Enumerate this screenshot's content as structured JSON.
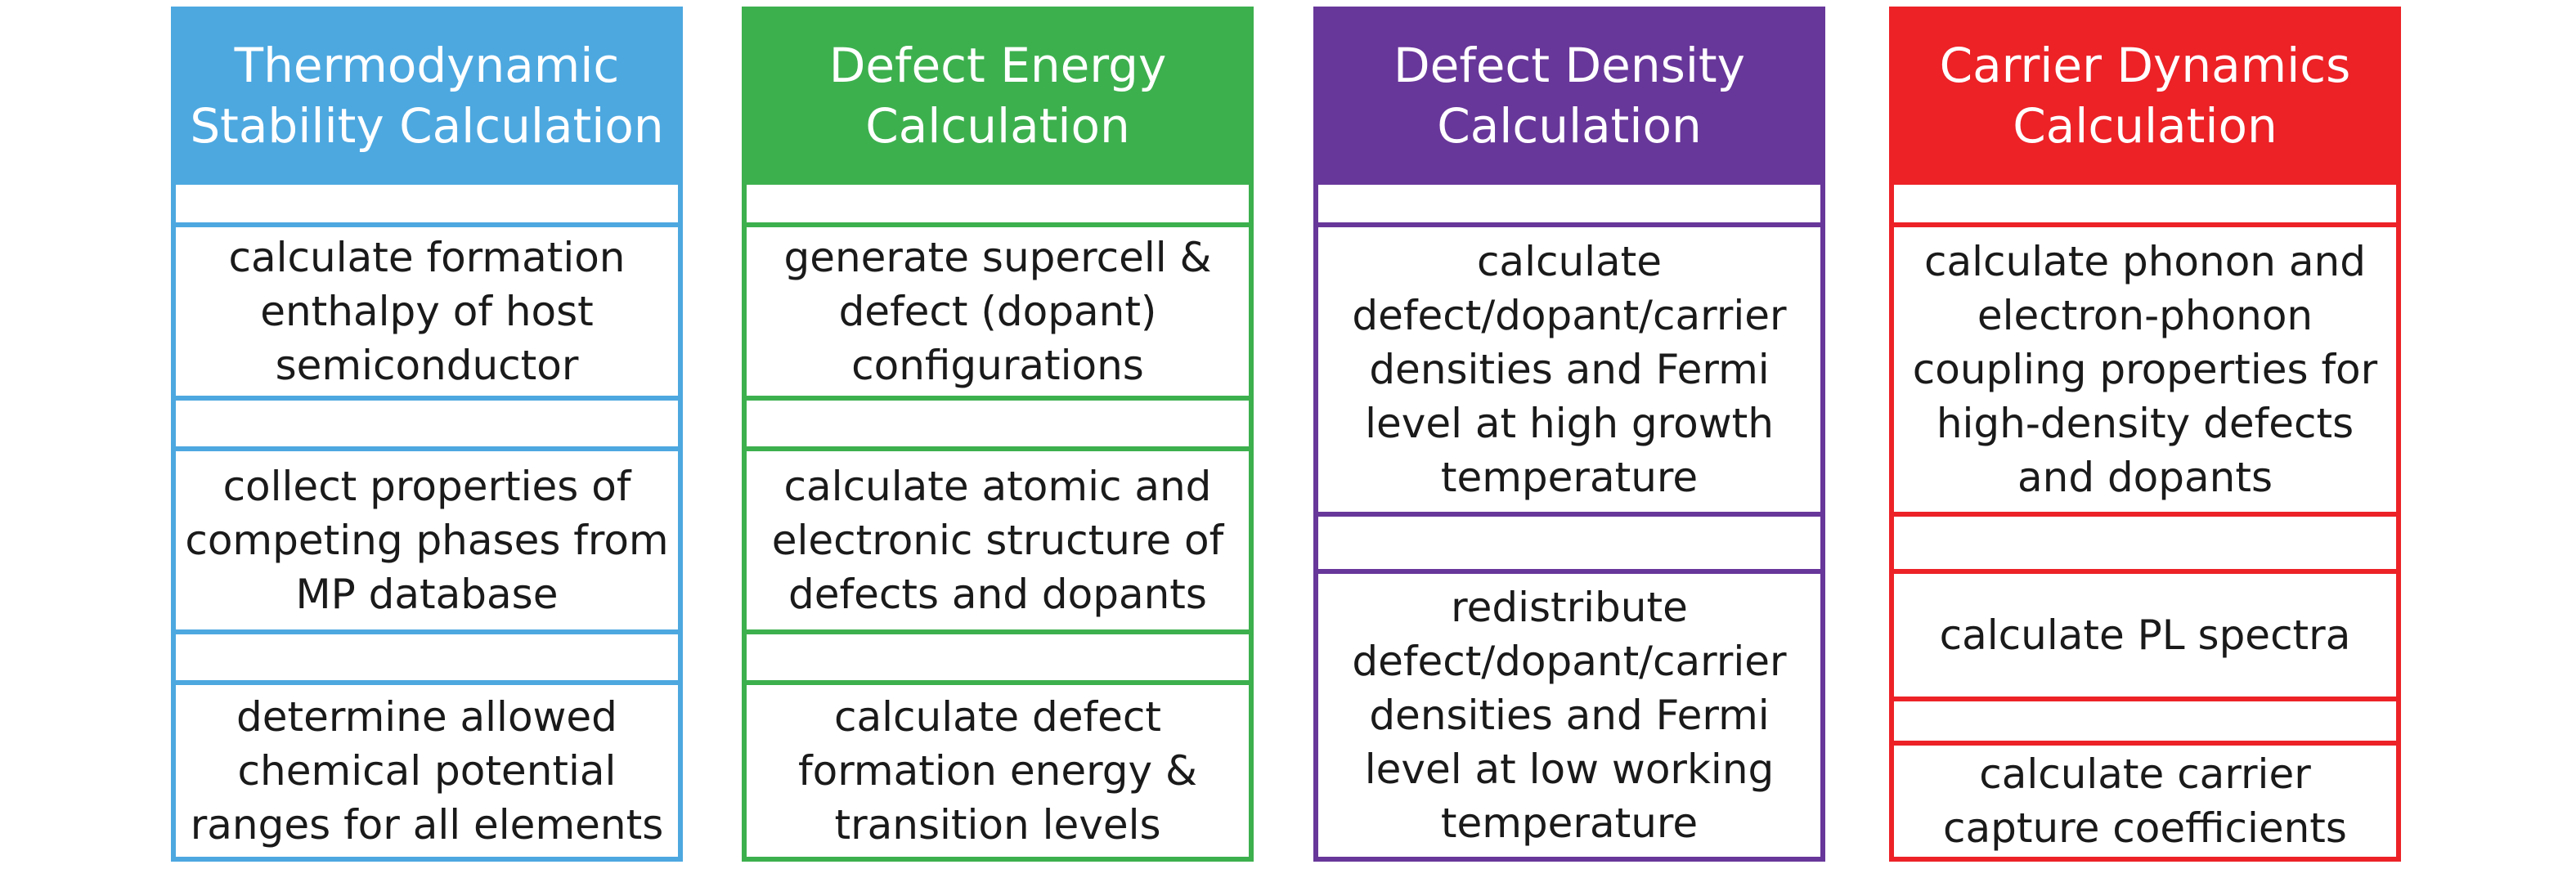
{
  "columns": [
    {
      "id": "thermo",
      "color": "#4DA8E0",
      "title": [
        "Thermodynamic",
        "Stability Calculation"
      ],
      "steps": [
        [
          "calculate formation",
          "enthalpy of host",
          "semiconductor"
        ],
        [
          "collect properties of",
          "competing phases from",
          "MP database"
        ],
        [
          "determine allowed",
          "chemical potential",
          "ranges for all elements"
        ]
      ]
    },
    {
      "id": "defect-energy",
      "color": "#3DB04E",
      "title": [
        "Defect Energy",
        "Calculation"
      ],
      "steps": [
        [
          "generate supercell &",
          "defect (dopant)",
          "configurations"
        ],
        [
          "calculate atomic and",
          "electronic structure of",
          "defects and dopants"
        ],
        [
          "calculate defect",
          "formation energy &",
          "transition levels"
        ]
      ]
    },
    {
      "id": "defect-density",
      "color": "#68379A",
      "title": [
        "Defect Density",
        "Calculation"
      ],
      "steps": [
        [
          "calculate",
          "defect/dopant/carrier",
          "densities and Fermi",
          "level at high growth",
          "temperature"
        ],
        [
          "redistribute",
          "defect/dopant/carrier",
          "densities and Fermi",
          "level at low working",
          "temperature"
        ]
      ]
    },
    {
      "id": "carrier-dynamics",
      "color": "#EC2227",
      "title": [
        "Carrier Dynamics",
        "Calculation"
      ],
      "steps": [
        [
          "calculate phonon and",
          "electron-phonon",
          "coupling properties for",
          "high-density defects",
          "and dopants"
        ],
        [
          "calculate PL spectra"
        ],
        [
          "calculate carrier",
          "capture coefficients"
        ]
      ]
    }
  ]
}
